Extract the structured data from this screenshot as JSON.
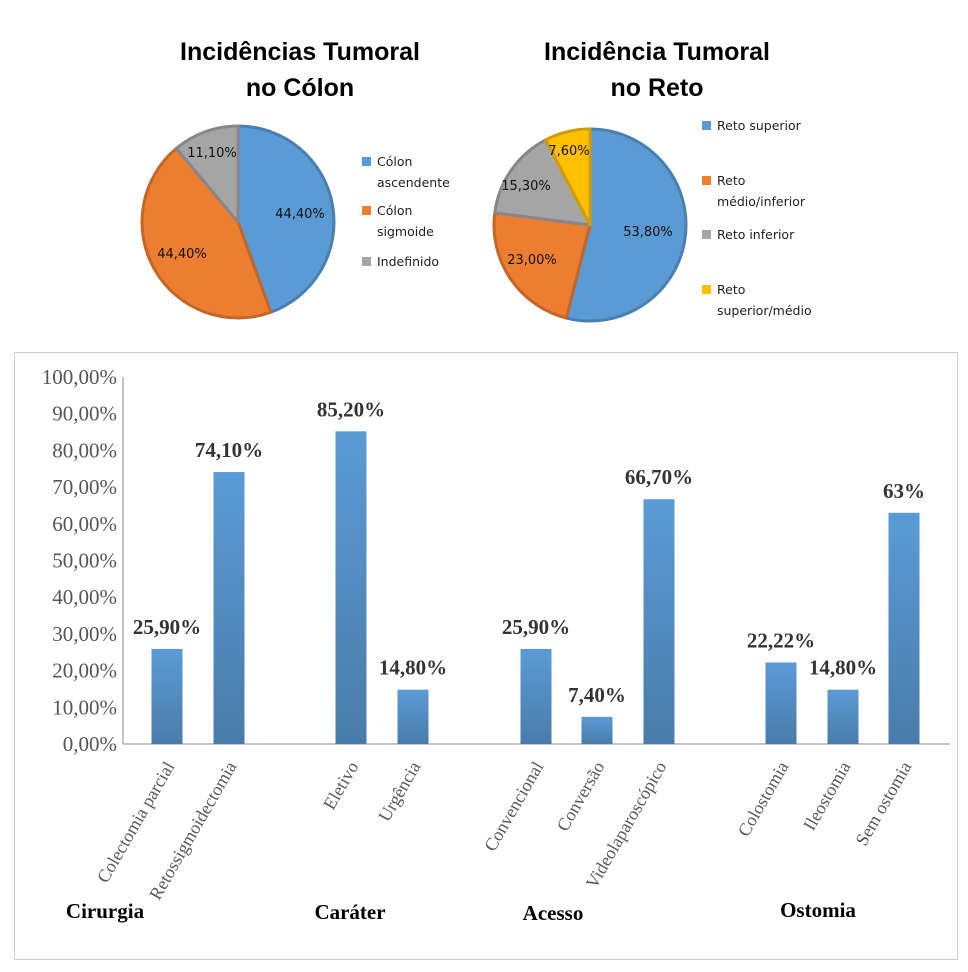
{
  "chart_data": [
    {
      "type": "pie",
      "title_lines": [
        "Incidências Tumoral",
        "no Cólon"
      ],
      "slices": [
        {
          "label": "Cólon ascendente",
          "legend_lines": [
            "Cólon",
            "ascendente"
          ],
          "value": 44.4,
          "display": "44,40%",
          "color": "#5b9bd5"
        },
        {
          "label": "Cólon sigmoide",
          "legend_lines": [
            "Cólon",
            "sigmoide"
          ],
          "value": 44.4,
          "display": "44,40%",
          "color": "#ed7d31"
        },
        {
          "label": "Indefinido",
          "legend_lines": [
            "Indefinido"
          ],
          "value": 11.1,
          "display": "11,10%",
          "color": "#a5a5a5"
        }
      ],
      "legend_position": "right"
    },
    {
      "type": "pie",
      "title_lines": [
        "Incidência Tumoral",
        "no Reto"
      ],
      "slices": [
        {
          "label": "Reto superior",
          "legend_lines": [
            "Reto superior"
          ],
          "value": 53.8,
          "display": "53,80%",
          "color": "#5b9bd5"
        },
        {
          "label": "Reto médio/inferior",
          "legend_lines": [
            "Reto",
            "médio/inferior"
          ],
          "value": 23.0,
          "display": "23,00%",
          "color": "#ed7d31"
        },
        {
          "label": "Reto inferior",
          "legend_lines": [
            "Reto inferior"
          ],
          "value": 15.3,
          "display": "15,30%",
          "color": "#a5a5a5"
        },
        {
          "label": "Reto superior/médio",
          "legend_lines": [
            "Reto",
            "superior/médio"
          ],
          "value": 7.6,
          "display": "7,60%",
          "color": "#ffc000"
        }
      ],
      "legend_position": "right"
    },
    {
      "type": "bar",
      "ylim": [
        0,
        100
      ],
      "yticks": [
        "0,00%",
        "10,00%",
        "20,00%",
        "30,00%",
        "40,00%",
        "50,00%",
        "60,00%",
        "70,00%",
        "80,00%",
        "90,00%",
        "100,00%"
      ],
      "bar_color": "#5b9bd5",
      "grid": false,
      "groups": [
        {
          "label": "Cirurgia",
          "bars": [
            {
              "category": "Colectomia parcial",
              "value": 25.9,
              "display": "25,90%"
            },
            {
              "category": "Retossigmoidectomia",
              "value": 74.1,
              "display": "74,10%"
            }
          ]
        },
        {
          "label": "Caráter",
          "bars": [
            {
              "category": "Eletivo",
              "value": 85.2,
              "display": "85,20%"
            },
            {
              "category": "Urgência",
              "value": 14.8,
              "display": "14,80%"
            }
          ]
        },
        {
          "label": "Acesso",
          "bars": [
            {
              "category": "Convencional",
              "value": 25.9,
              "display": "25,90%"
            },
            {
              "category": "Conversão",
              "value": 7.4,
              "display": "7,40%"
            },
            {
              "category": "Videolaparoscópico",
              "value": 66.7,
              "display": "66,70%"
            }
          ]
        },
        {
          "label": "Ostomia",
          "bars": [
            {
              "category": "Colostomia",
              "value": 22.22,
              "display": "22,22%"
            },
            {
              "category": "Ileostomia",
              "value": 14.8,
              "display": "14,80%"
            },
            {
              "category": "Sem ostomia",
              "value": 63,
              "display": "63%"
            }
          ]
        }
      ]
    }
  ]
}
